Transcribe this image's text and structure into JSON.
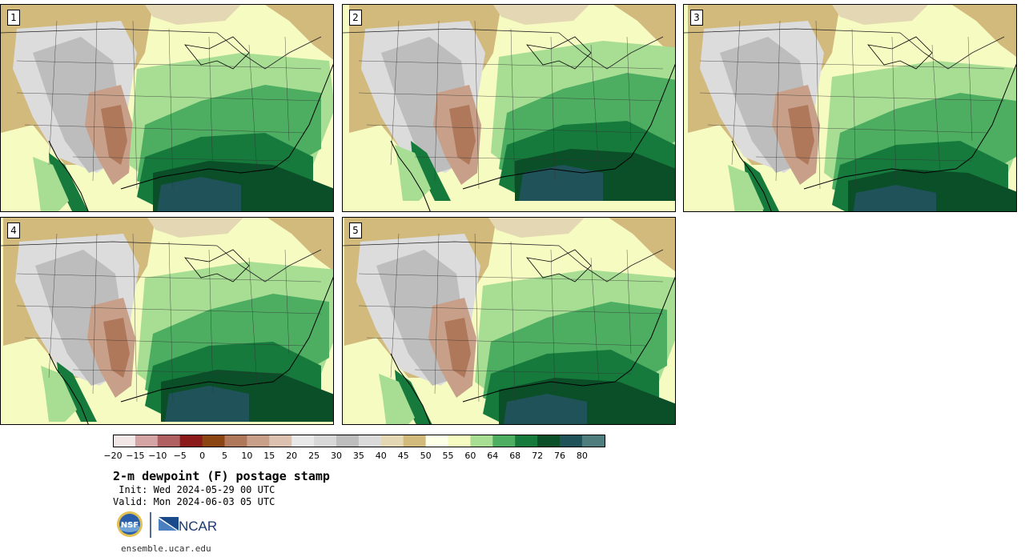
{
  "panels": [
    {
      "label": "1",
      "variant": 0
    },
    {
      "label": "2",
      "variant": 1
    },
    {
      "label": "3",
      "variant": 2
    },
    {
      "label": "4",
      "variant": 3
    },
    {
      "label": "5",
      "variant": 4
    }
  ],
  "colorbar": {
    "colors": [
      "#f2e6e6",
      "#d4a3a3",
      "#b06060",
      "#8b1a1a",
      "#8b4513",
      "#b0785a",
      "#c8a08a",
      "#dcc0b0",
      "#e8e8e8",
      "#d8d8d8",
      "#bdbdbd",
      "#dadada",
      "#e4d7b3",
      "#d2b97c",
      "#fdffe6",
      "#f6fbc2",
      "#a8de94",
      "#4dae62",
      "#167a3c",
      "#0b4f28",
      "#1f5359",
      "#4f7d7d"
    ],
    "ticks": [
      "−20",
      "−15",
      "−10",
      "−5",
      "0",
      "5",
      "10",
      "15",
      "20",
      "25",
      "30",
      "35",
      "40",
      "45",
      "50",
      "55",
      "60",
      "64",
      "68",
      "72",
      "76",
      "80"
    ]
  },
  "title": "2-m dewpoint (F) postage stamp",
  "init": " Init: Wed 2024-05-29 00 UTC",
  "valid": "Valid: Mon 2024-06-03 05 UTC",
  "logos": {
    "nsf": "NSF",
    "ncar": "NCAR"
  },
  "url": "ensemble.ucar.edu"
}
